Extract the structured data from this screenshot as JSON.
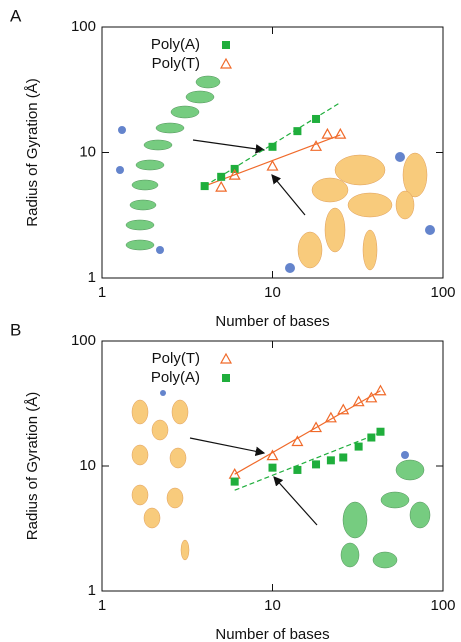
{
  "chart_data": [
    {
      "type": "scatter",
      "label": "A",
      "xlabel": "Number of bases",
      "ylabel": "Radius of Gyration (Å)",
      "log_x": true,
      "log_y": true,
      "xlim": [
        1,
        100
      ],
      "ylim": [
        1,
        100
      ],
      "xticks": [
        1,
        10,
        100
      ],
      "yticks": [
        1,
        10,
        100
      ],
      "legend": "top-left",
      "series": [
        {
          "name": "Poly(A)",
          "color": "#1fae3c",
          "marker": "square",
          "x": [
            4,
            5,
            6,
            10,
            14,
            18
          ],
          "values": [
            5.4,
            6.4,
            7.4,
            11.1,
            14.8,
            18.5
          ]
        },
        {
          "name": "Poly(T)",
          "color": "#f06a2a",
          "marker": "triangle",
          "x": [
            5,
            6,
            10,
            18,
            21,
            25
          ],
          "values": [
            5.3,
            6.6,
            7.8,
            11.2,
            14,
            14
          ]
        }
      ],
      "fits": [
        {
          "color": "#1fae3c",
          "dashed": true,
          "x": [
            4,
            25
          ],
          "values": [
            5.4,
            25
          ]
        },
        {
          "color": "#f06a2a",
          "dashed": false,
          "x": [
            4,
            25
          ],
          "values": [
            5.4,
            13.8
          ]
        }
      ]
    },
    {
      "type": "scatter",
      "label": "B",
      "xlabel": "Number of bases",
      "ylabel": "Radius of Gyration (Å)",
      "log_x": true,
      "log_y": true,
      "xlim": [
        1,
        100
      ],
      "ylim": [
        1,
        100
      ],
      "xticks": [
        1,
        10,
        100
      ],
      "yticks": [
        1,
        10,
        100
      ],
      "legend": "top-left",
      "series": [
        {
          "name": "Poly(T)",
          "color": "#f06a2a",
          "marker": "triangle",
          "x": [
            6,
            10,
            14,
            18,
            22,
            26,
            32,
            38,
            43
          ],
          "values": [
            8.6,
            12.1,
            15.7,
            20.3,
            24.3,
            28.2,
            32.7,
            35.1,
            40
          ]
        },
        {
          "name": "Poly(A)",
          "color": "#1fae3c",
          "marker": "square",
          "x": [
            6,
            10,
            14,
            18,
            22,
            26,
            32,
            38,
            43
          ],
          "values": [
            7.5,
            9.7,
            9.3,
            10.3,
            11.1,
            11.7,
            14.3,
            16.9,
            18.8
          ]
        }
      ],
      "fits": [
        {
          "color": "#f06a2a",
          "dashed": false,
          "x": [
            6,
            43
          ],
          "values": [
            8.6,
            40
          ]
        },
        {
          "color": "#1fae3c",
          "dashed": true,
          "x": [
            6,
            43
          ],
          "values": [
            6.4,
            18.5
          ]
        }
      ]
    }
  ]
}
